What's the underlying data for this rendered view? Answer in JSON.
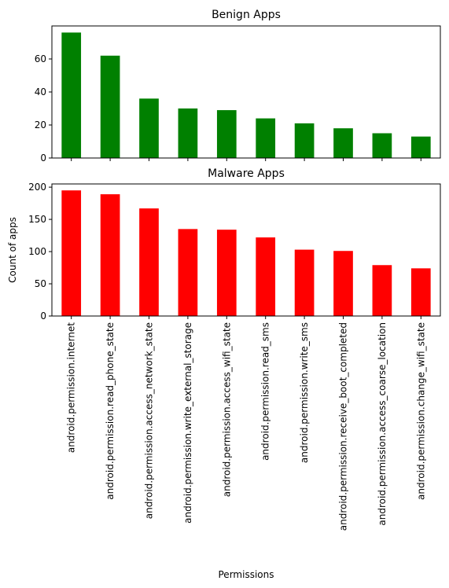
{
  "chart_data": [
    {
      "type": "bar",
      "title": "Benign Apps",
      "color": "#008000",
      "categories": [
        "android.permission.internet",
        "android.permission.read_phone_state",
        "android.permission.access_network_state",
        "android.permission.write_external_storage",
        "android.permission.access_wifi_state",
        "android.permission.read_sms",
        "android.permission.write_sms",
        "android.permission.receive_boot_completed",
        "android.permission.access_coarse_location",
        "android.permission.change_wifi_state"
      ],
      "values": [
        76,
        62,
        36,
        30,
        29,
        24,
        21,
        18,
        15,
        13
      ],
      "ylim": [
        0,
        80
      ],
      "yticks": [
        0,
        20,
        40,
        60
      ],
      "ylabel": "",
      "xlabel": "",
      "grid": false
    },
    {
      "type": "bar",
      "title": "Malware Apps",
      "color": "#ff0000",
      "categories": [
        "android.permission.internet",
        "android.permission.read_phone_state",
        "android.permission.access_network_state",
        "android.permission.write_external_storage",
        "android.permission.access_wifi_state",
        "android.permission.read_sms",
        "android.permission.write_sms",
        "android.permission.receive_boot_completed",
        "android.permission.access_coarse_location",
        "android.permission.change_wifi_state"
      ],
      "values": [
        195,
        189,
        167,
        135,
        134,
        122,
        103,
        101,
        79,
        74
      ],
      "ylim": [
        0,
        205
      ],
      "yticks": [
        0,
        50,
        100,
        150,
        200
      ],
      "ylabel": "Count of apps",
      "xlabel": "Permissions",
      "grid": false
    }
  ]
}
